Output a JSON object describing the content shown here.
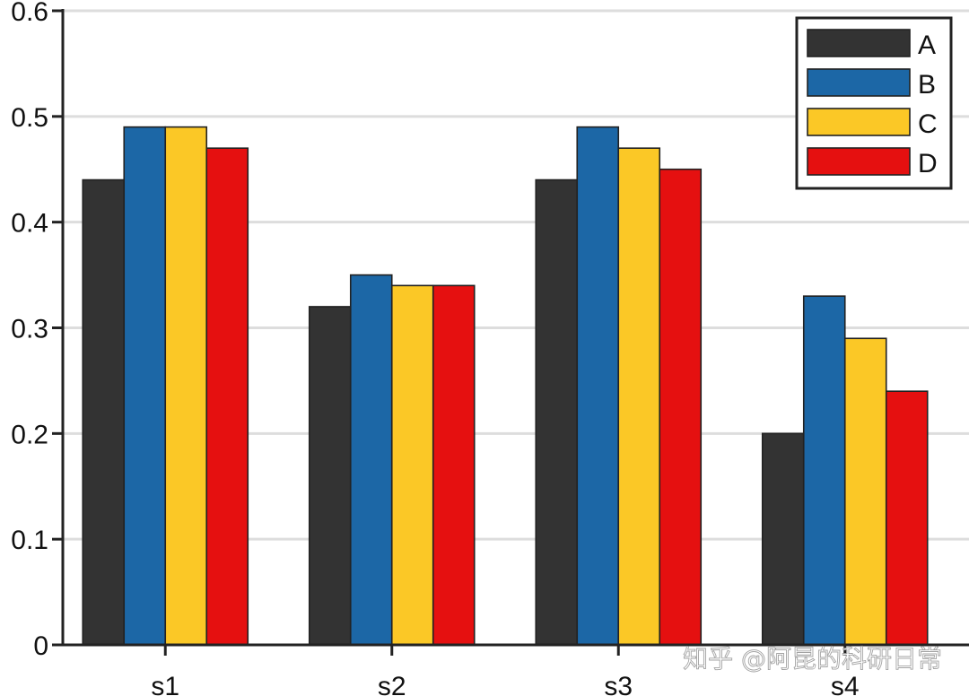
{
  "chart_data": {
    "type": "bar",
    "categories": [
      "s1",
      "s2",
      "s3",
      "s4"
    ],
    "series": [
      {
        "name": "A",
        "color": "#333333",
        "values": [
          0.44,
          0.32,
          0.44,
          0.2
        ]
      },
      {
        "name": "B",
        "color": "#1C67A6",
        "values": [
          0.49,
          0.35,
          0.49,
          0.33
        ]
      },
      {
        "name": "C",
        "color": "#FBC826",
        "values": [
          0.49,
          0.34,
          0.47,
          0.29
        ]
      },
      {
        "name": "D",
        "color": "#E51010",
        "values": [
          0.47,
          0.34,
          0.45,
          0.24
        ]
      }
    ],
    "yticks": [
      "0",
      "0.1",
      "0.2",
      "0.3",
      "0.4",
      "0.5",
      "0.6"
    ],
    "ylim": [
      0,
      0.6
    ],
    "grid": "horizontal",
    "legend_position": "top-right"
  },
  "watermark": "知乎 @阿昆的科研日常"
}
